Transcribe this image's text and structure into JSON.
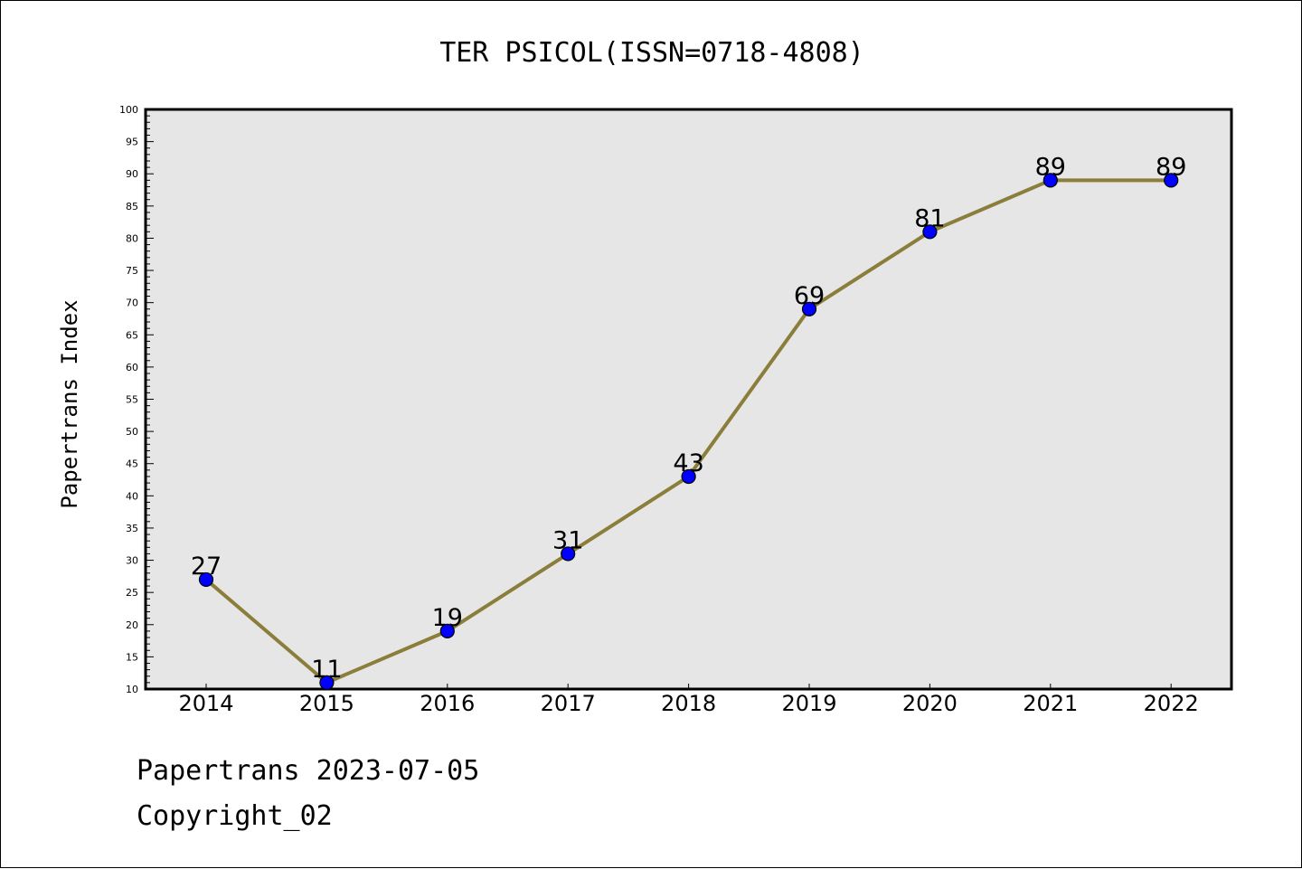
{
  "chart_data": {
    "type": "line",
    "title": "TER PSICOL(ISSN=0718-4808)",
    "xlabel": "",
    "ylabel": "Papertrans Index",
    "categories": [
      "2014",
      "2015",
      "2016",
      "2017",
      "2018",
      "2019",
      "2020",
      "2021",
      "2022"
    ],
    "series": [
      {
        "values": [
          27,
          11,
          19,
          31,
          43,
          69,
          81,
          89,
          89
        ]
      }
    ],
    "ylim": [
      10,
      100
    ],
    "yticks": [
      10,
      15,
      20,
      25,
      30,
      35,
      40,
      45,
      50,
      55,
      60,
      65,
      70,
      75,
      80,
      85,
      90,
      95,
      100
    ],
    "grid": false,
    "legend": "none",
    "data_labels": true,
    "colors": {
      "line": "#8b7d3a",
      "marker": "#0000ff",
      "plot_background": "#e6e6e6"
    }
  },
  "footer": {
    "brand": "Papertrans 2023-07-05",
    "copyright": "Copyright_02"
  }
}
